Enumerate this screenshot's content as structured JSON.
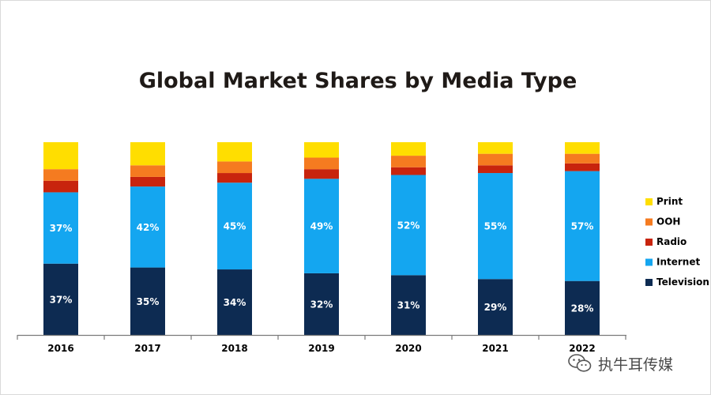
{
  "chart_data": {
    "type": "bar",
    "stacked": true,
    "title": "Global Market Shares by Media Type",
    "categories": [
      "2016",
      "2017",
      "2018",
      "2019",
      "2020",
      "2021",
      "2022"
    ],
    "series": [
      {
        "name": "Television",
        "color": "#0d2b52",
        "values": [
          37,
          35,
          34,
          32,
          31,
          29,
          28
        ],
        "labels": [
          "37%",
          "35%",
          "34%",
          "32%",
          "31%",
          "29%",
          "28%"
        ]
      },
      {
        "name": "Internet",
        "color": "#14a6f0",
        "values": [
          37,
          42,
          45,
          49,
          52,
          55,
          57
        ],
        "labels": [
          "37%",
          "42%",
          "45%",
          "49%",
          "52%",
          "55%",
          "57%"
        ]
      },
      {
        "name": "Radio",
        "color": "#c8240d",
        "values": [
          6,
          5,
          5,
          5,
          4,
          4,
          4
        ]
      },
      {
        "name": "OOH",
        "color": "#f57b20",
        "values": [
          6,
          6,
          6,
          6,
          6,
          6,
          5
        ]
      },
      {
        "name": "Print",
        "color": "#ffde00",
        "values": [
          14,
          12,
          10,
          8,
          7,
          6,
          6
        ]
      }
    ],
    "ylim": [
      0,
      100
    ],
    "legend_position": "right",
    "legend_order": [
      "Print",
      "OOH",
      "Radio",
      "Internet",
      "Television"
    ],
    "grid": false
  },
  "watermark": {
    "text": "执牛耳传媒",
    "icon": "wechat-icon"
  }
}
